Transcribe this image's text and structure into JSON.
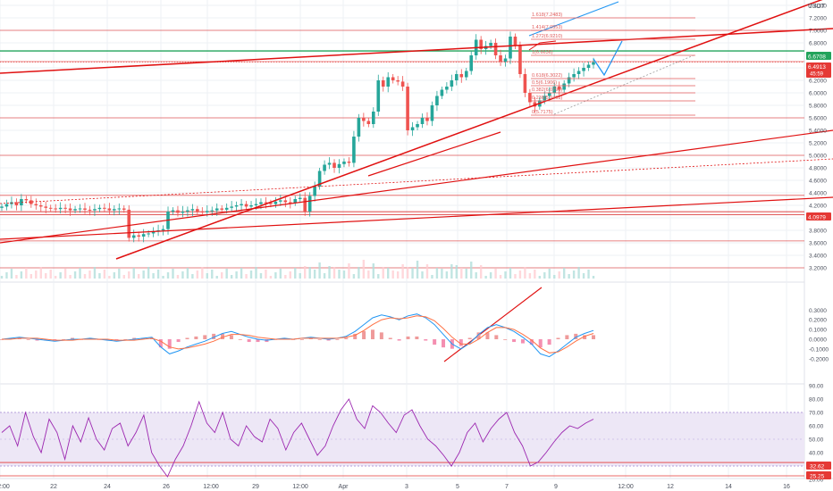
{
  "currency_label": "USDT",
  "colors": {
    "up": "#26a69a",
    "down": "#ef5350",
    "hline": "#e05a5a",
    "trend": "#e01010",
    "forecast": "#2196f3",
    "price_tag_green": "#22a35b",
    "price_tag_red": "#e53935",
    "macd_line": "#2196f3",
    "signal_line": "#ff7043",
    "hist_pos": "#ef9a9a",
    "hist_neg": "#f48fb1",
    "rsi_line": "#9c27b0",
    "rsi_band": "#ede7f6",
    "grid": "#eef0f4",
    "text": "#4a4f5c"
  },
  "price_axis": {
    "ticks": [
      "7.4000",
      "7.2000",
      "7.0000",
      "6.8000",
      "6.4000",
      "6.2000",
      "6.0000",
      "5.8000",
      "5.6000",
      "5.4000",
      "5.2000",
      "5.0000",
      "4.8000",
      "4.6000",
      "4.4000",
      "4.2000",
      "4.0000",
      "3.8000",
      "3.6000",
      "3.4000",
      "3.2000"
    ],
    "ylim": [
      3.2,
      7.4
    ],
    "tags": {
      "green": "6.6708",
      "red_value": "6.4913",
      "red_timer": "45:59",
      "lower_red": "4.0979"
    }
  },
  "macd_axis": {
    "ticks": [
      "0.3000",
      "0.2000",
      "0.1000",
      "0.0000",
      "-0.1000",
      "-0.2000"
    ]
  },
  "rsi_axis": {
    "ticks": [
      "90.00",
      "80.00",
      "70.00",
      "60.00",
      "50.00",
      "40.00",
      "30.00",
      "20.00"
    ],
    "tags": [
      "32.62",
      "25.25"
    ]
  },
  "time_axis": {
    "labels": [
      "2:00",
      "22",
      "24",
      "26",
      "12:00",
      "29",
      "12:00",
      "Apr",
      "3",
      "5",
      "7",
      "9",
      "12:00",
      "12",
      "14",
      "16"
    ]
  },
  "fib_levels": [
    {
      "label": "1.618(7.2483)"
    },
    {
      "label": "1.414(7.0553)"
    },
    {
      "label": "1.272(6.9210)"
    },
    {
      "label": "1(6.6636)"
    },
    {
      "label": "0.618(6.3022)"
    },
    {
      "label": "0.5(6.1906)"
    },
    {
      "label": "0.382(6.0790)"
    },
    {
      "label": "0.236(5.9408)"
    },
    {
      "label": "0(5.7175)"
    }
  ],
  "chart_data": [
    {
      "type": "candlestick",
      "title": "",
      "ylabel": "USDT",
      "ylim": [
        3.2,
        7.4
      ],
      "grid": true,
      "x_range_days": [
        "Mar 20",
        "Apr 16"
      ],
      "close_series": [
        4.18,
        4.22,
        4.25,
        4.2,
        4.3,
        4.28,
        4.22,
        4.2,
        4.18,
        4.16,
        4.15,
        4.14,
        4.16,
        4.15,
        4.12,
        4.14,
        4.15,
        4.13,
        4.12,
        4.14,
        4.16,
        4.15,
        4.12,
        4.14,
        4.15,
        4.13,
        3.68,
        3.72,
        3.7,
        3.74,
        3.75,
        3.78,
        3.8,
        3.82,
        4.1,
        4.12,
        4.08,
        4.1,
        4.12,
        4.14,
        4.1,
        4.09,
        4.11,
        4.12,
        4.15,
        4.13,
        4.16,
        4.18,
        4.2,
        4.22,
        4.18,
        4.2,
        4.22,
        4.25,
        4.24,
        4.22,
        4.26,
        4.28,
        4.25,
        4.24,
        4.3,
        4.32,
        4.1,
        4.35,
        4.5,
        4.75,
        4.85,
        4.88,
        4.8,
        4.86,
        4.9,
        4.88,
        5.3,
        5.6,
        5.55,
        5.5,
        5.7,
        6.2,
        6.1,
        6.25,
        6.2,
        6.18,
        6.1,
        5.4,
        5.45,
        5.5,
        5.6,
        5.55,
        5.8,
        5.95,
        6.05,
        6.1,
        6.2,
        6.3,
        6.25,
        6.35,
        6.6,
        6.85,
        6.7,
        6.75,
        6.8,
        6.6,
        6.5,
        6.55,
        6.9,
        6.75,
        6.3,
        6.0,
        5.85,
        5.78,
        5.88,
        5.95,
        6.0,
        6.1,
        6.05,
        6.15,
        6.25,
        6.3,
        6.35,
        6.4,
        6.45,
        6.49
      ],
      "current_price": 6.4913,
      "marked_price": 6.6708,
      "support_levels": [
        7.0,
        6.5,
        5.6,
        5.0,
        4.36,
        4.098,
        4.05,
        3.63,
        3.2
      ]
    },
    {
      "type": "line",
      "title": "MACD",
      "ylim": [
        -0.25,
        0.32
      ],
      "series": [
        {
          "values": [
            0.0,
            0.01,
            0.02,
            0.01,
            0.0,
            -0.01,
            -0.02,
            -0.01,
            0.0,
            0.0,
            0.01,
            0.0,
            -0.01,
            -0.02,
            -0.01,
            0.0,
            0.01,
            0.02,
            -0.08,
            -0.15,
            -0.12,
            -0.08,
            -0.05,
            -0.02,
            0.02,
            0.06,
            0.08,
            0.05,
            0.02,
            0.0,
            -0.01,
            0.0,
            0.01,
            0.0,
            0.01,
            0.02,
            0.01,
            0.0,
            0.01,
            0.03,
            0.08,
            0.15,
            0.22,
            0.25,
            0.23,
            0.2,
            0.24,
            0.26,
            0.22,
            0.15,
            0.05,
            -0.05,
            -0.1,
            -0.04,
            0.05,
            0.12,
            0.15,
            0.12,
            0.08,
            0.02,
            -0.05,
            -0.15,
            -0.18,
            -0.12,
            -0.05,
            0.02,
            0.06,
            0.09
          ]
        },
        {
          "values": [
            0.0,
            0.0,
            0.01,
            0.01,
            0.01,
            0.0,
            -0.01,
            -0.01,
            -0.01,
            0.0,
            0.0,
            0.0,
            0.0,
            -0.01,
            -0.01,
            -0.01,
            0.0,
            0.01,
            -0.02,
            -0.08,
            -0.1,
            -0.09,
            -0.07,
            -0.05,
            -0.02,
            0.02,
            0.05,
            0.05,
            0.04,
            0.02,
            0.01,
            0.0,
            0.0,
            0.0,
            0.01,
            0.01,
            0.01,
            0.01,
            0.01,
            0.02,
            0.04,
            0.09,
            0.15,
            0.2,
            0.22,
            0.21,
            0.22,
            0.24,
            0.23,
            0.19,
            0.11,
            0.02,
            -0.05,
            -0.05,
            0.0,
            0.07,
            0.12,
            0.12,
            0.1,
            0.05,
            -0.01,
            -0.09,
            -0.14,
            -0.13,
            -0.08,
            -0.02,
            0.03,
            0.06
          ]
        }
      ]
    },
    {
      "type": "line",
      "title": "RSI",
      "ylim": [
        20,
        90
      ],
      "band": [
        30,
        70
      ],
      "series": [
        {
          "values": [
            55,
            60,
            45,
            70,
            52,
            40,
            65,
            55,
            35,
            60,
            48,
            66,
            50,
            42,
            58,
            62,
            45,
            55,
            68,
            40,
            30,
            22,
            35,
            45,
            60,
            78,
            62,
            55,
            70,
            50,
            45,
            60,
            52,
            48,
            65,
            58,
            42,
            55,
            62,
            50,
            38,
            45,
            60,
            72,
            80,
            65,
            58,
            75,
            70,
            62,
            55,
            68,
            72,
            60,
            50,
            45,
            38,
            30,
            40,
            55,
            62,
            48,
            58,
            65,
            70,
            55,
            45,
            30,
            33,
            40,
            48,
            55,
            60,
            58,
            62,
            65
          ]
        }
      ]
    }
  ]
}
